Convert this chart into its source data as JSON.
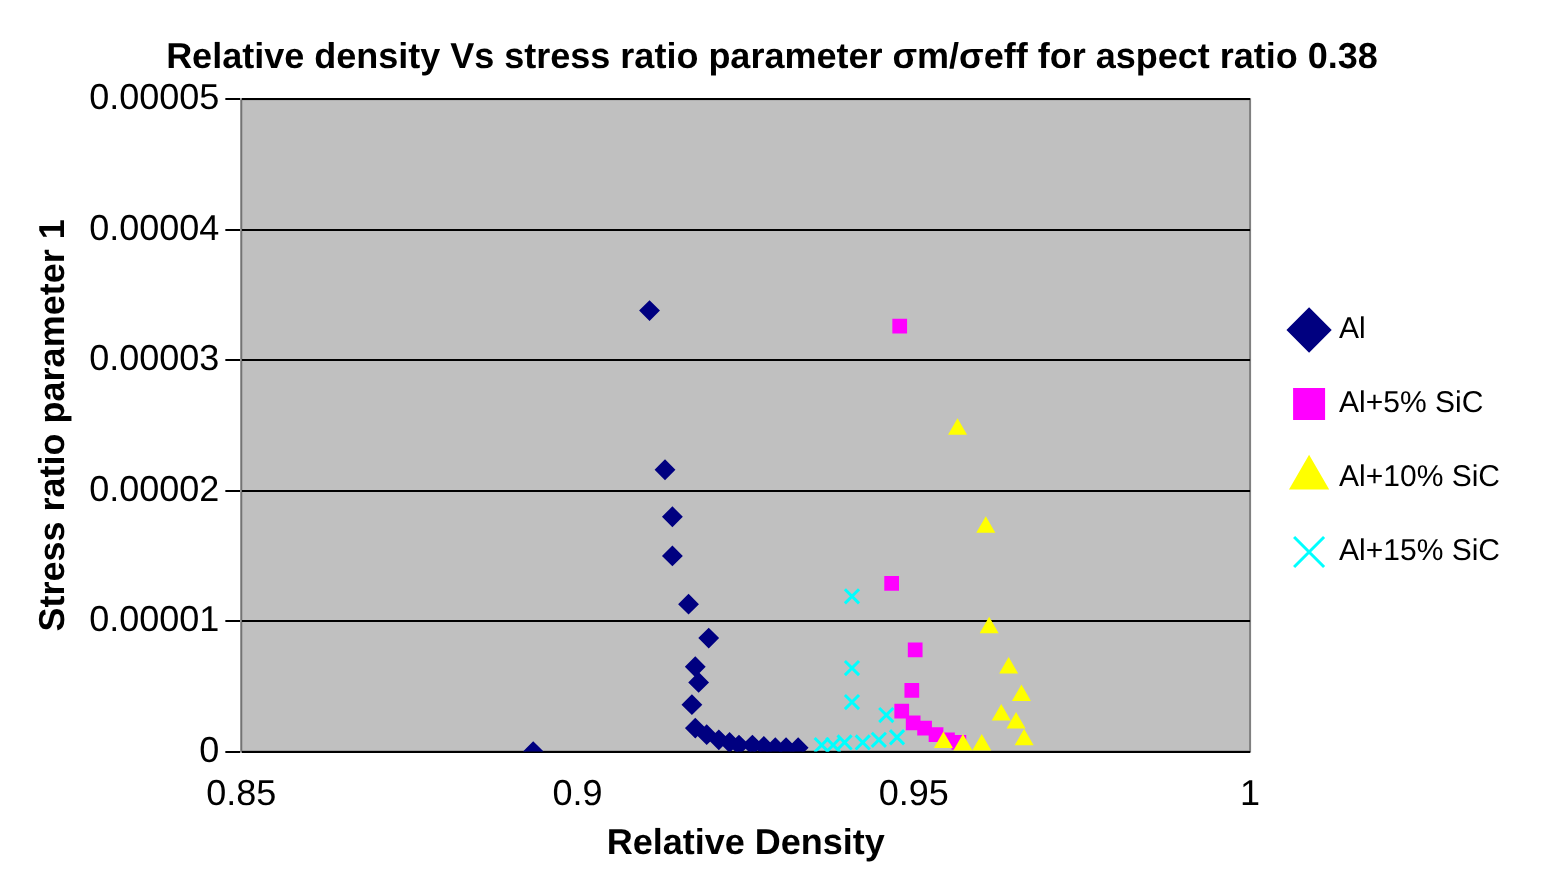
{
  "chart_data": {
    "type": "scatter",
    "title": "Relative density Vs stress ratio parameter σm/σeff for aspect ratio 0.38",
    "xlabel": "Relative Density",
    "ylabel": "Stress ratio parameter 1",
    "xlim": [
      0.85,
      1
    ],
    "xticks": [
      0.85,
      0.9,
      0.95,
      1
    ],
    "ylim": [
      0,
      5e-05
    ],
    "yticks": [
      0,
      {
        "value": 1e-05,
        "label": "0.00001"
      },
      {
        "value": 2e-05,
        "label": "0.00002"
      },
      {
        "value": 3e-05,
        "label": "0.00003"
      },
      {
        "value": 4e-05,
        "label": "0.00004"
      },
      {
        "value": 5e-05,
        "label": "0.00005"
      }
    ],
    "grid": "y",
    "legend": "right",
    "series": [
      {
        "name": "Al",
        "color": "#000080",
        "marker": "diamond",
        "x": [
          0.8934,
          0.9107,
          0.913,
          0.9141,
          0.9141,
          0.9165,
          0.9195,
          0.9175,
          0.918,
          0.917,
          0.9175,
          0.9192,
          0.921,
          0.9226,
          0.924,
          0.926,
          0.9277,
          0.9294,
          0.931,
          0.9328
        ],
        "values": [
          0,
          3.38e-05,
          2.16e-05,
          1.8e-05,
          1.5e-05,
          1.13e-05,
          8.7e-06,
          6.5e-06,
          5.3e-06,
          3.6e-06,
          1.8e-06,
          1.3e-06,
          9e-07,
          7e-07,
          5e-07,
          5e-07,
          4e-07,
          3e-07,
          3e-07,
          3e-07
        ]
      },
      {
        "name": "Al+5% SiC",
        "color": "#ff00ff",
        "marker": "square",
        "x": [
          0.9479,
          0.9467,
          0.9502,
          0.9497,
          0.9482,
          0.9499,
          0.9516,
          0.9533,
          0.955,
          0.9567
        ],
        "values": [
          3.26e-05,
          1.29e-05,
          7.8e-06,
          4.7e-06,
          3.1e-06,
          2.2e-06,
          1.8e-06,
          1.3e-06,
          9e-07,
          7e-07
        ]
      },
      {
        "name": "Al+10% SiC",
        "color": "#ffff00",
        "marker": "triangle",
        "x": [
          0.9565,
          0.9607,
          0.9612,
          0.9641,
          0.966,
          0.963,
          0.9652,
          0.9544,
          0.9573,
          0.9601,
          0.9664
        ],
        "values": [
          2.47e-05,
          1.72e-05,
          9.5e-06,
          6.4e-06,
          4.3e-06,
          2.8e-06,
          2.2e-06,
          7e-07,
          5e-07,
          5e-07,
          9e-07
        ]
      },
      {
        "name": "Al+15% SiC",
        "color": "#00ffff",
        "marker": "cross",
        "x": [
          0.9408,
          0.9408,
          0.9408,
          0.9459,
          0.9363,
          0.938,
          0.9397,
          0.9424,
          0.9448,
          0.9475
        ],
        "values": [
          1.19e-05,
          6.4e-06,
          3.8e-06,
          2.8e-06,
          5e-07,
          5e-07,
          7e-07,
          7e-07,
          9e-07,
          1.1e-06
        ]
      }
    ]
  }
}
